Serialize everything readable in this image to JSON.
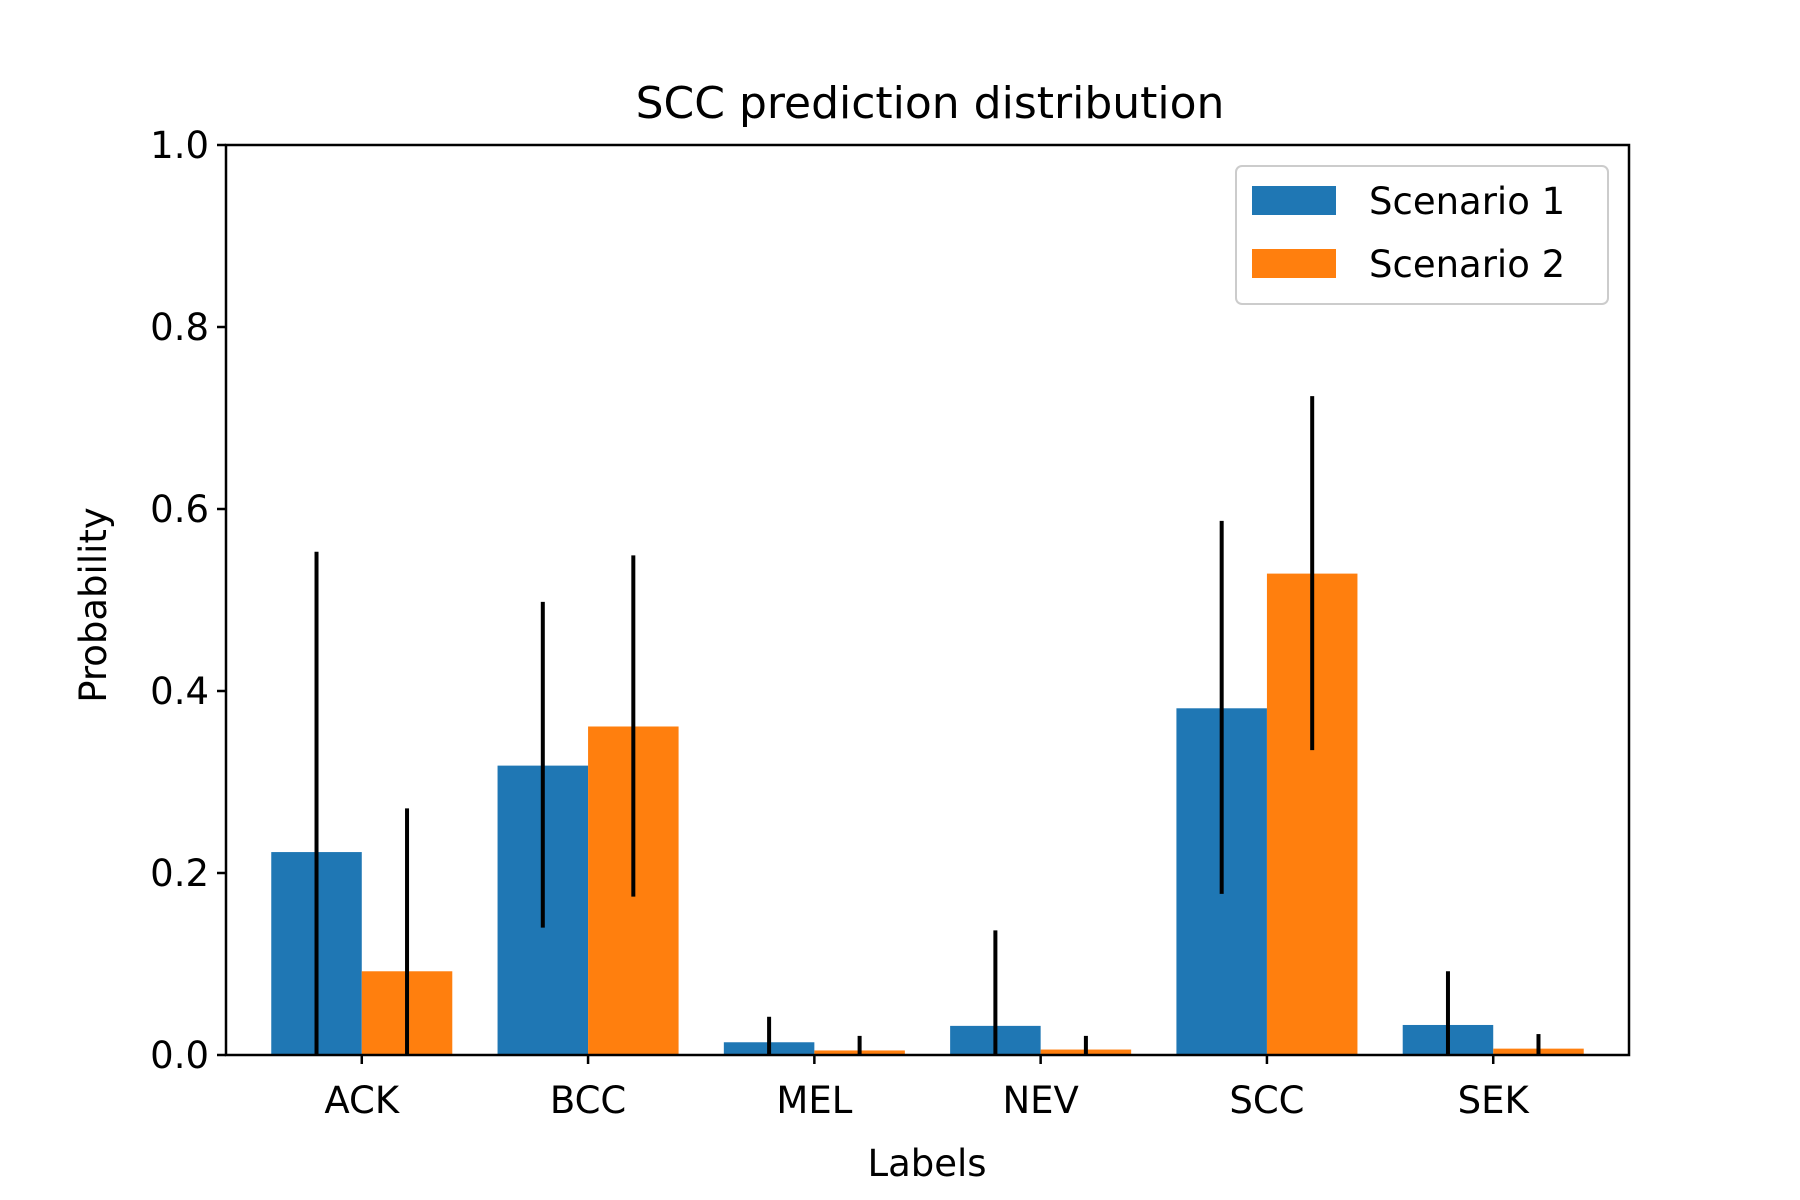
{
  "chart_data": {
    "type": "bar",
    "title": "SCC prediction distribution",
    "xlabel": "Labels",
    "ylabel": "Probability",
    "ylim": [
      0,
      1.0
    ],
    "yticks": [
      "0.0",
      "0.2",
      "0.4",
      "0.6",
      "0.8",
      "1.0"
    ],
    "categories": [
      "ACK",
      "BCC",
      "MEL",
      "NEV",
      "SCC",
      "SEK"
    ],
    "legend_position": "top-right",
    "grid": false,
    "series": [
      {
        "name": "Scenario 1",
        "color": "#1f77b4",
        "values": [
          0.223,
          0.318,
          0.014,
          0.032,
          0.381,
          0.033
        ],
        "error_low": [
          0.0,
          0.14,
          0.0,
          0.0,
          0.177,
          0.0
        ],
        "error_high": [
          0.553,
          0.498,
          0.042,
          0.137,
          0.587,
          0.092
        ]
      },
      {
        "name": "Scenario 2",
        "color": "#ff7f0e",
        "values": [
          0.092,
          0.361,
          0.005,
          0.006,
          0.529,
          0.007
        ],
        "error_low": [
          0.0,
          0.174,
          0.0,
          0.0,
          0.335,
          0.0
        ],
        "error_high": [
          0.271,
          0.549,
          0.021,
          0.021,
          0.724,
          0.023
        ]
      }
    ]
  }
}
